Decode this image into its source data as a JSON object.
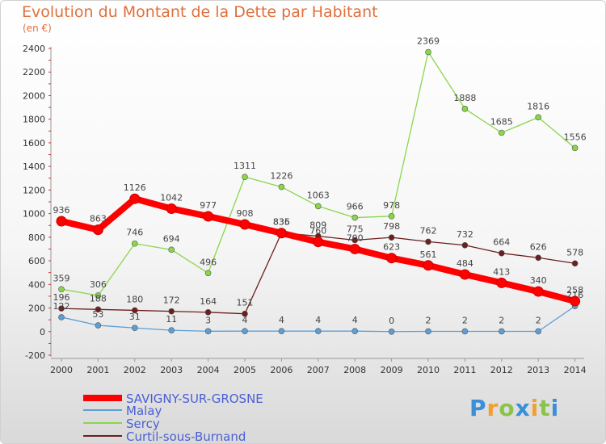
{
  "chart_data": {
    "type": "line",
    "title": "Evolution du Montant de la Dette par Habitant",
    "subtitle": "(en €)",
    "x": [
      "2000",
      "2001",
      "2002",
      "2003",
      "2004",
      "2005",
      "2006",
      "2007",
      "2008",
      "2009",
      "2010",
      "2011",
      "2012",
      "2013",
      "2014"
    ],
    "ylim": [
      -200,
      2400
    ],
    "yticks": [
      -200,
      0,
      200,
      400,
      600,
      800,
      1000,
      1200,
      1400,
      1600,
      1800,
      2000,
      2200,
      2400
    ],
    "grid": false,
    "legend_position": "bottom-left",
    "series": [
      {
        "name": "SAVIGNY-SUR-GROSNE",
        "color": "#ff0000",
        "values": [
          936,
          863,
          1126,
          1042,
          977,
          908,
          835,
          760,
          700,
          623,
          561,
          484,
          413,
          340,
          258
        ]
      },
      {
        "name": "Malay",
        "color": "#5d9ed6",
        "values": [
          122,
          53,
          31,
          11,
          3,
          4,
          4,
          4,
          4,
          0,
          2,
          2,
          2,
          2,
          216
        ]
      },
      {
        "name": "Sercy",
        "color": "#8ad64a",
        "values": [
          359,
          306,
          746,
          694,
          496,
          1311,
          1226,
          1063,
          966,
          978,
          2369,
          1888,
          1685,
          1816,
          1556
        ]
      },
      {
        "name": "Curtil-sous-Burnand",
        "color": "#6b1f1f",
        "values": [
          196,
          188,
          180,
          172,
          164,
          151,
          836,
          809,
          775,
          798,
          762,
          732,
          664,
          626,
          578
        ]
      }
    ]
  },
  "logo": {
    "letters": [
      "P",
      "r",
      "o",
      "x",
      "i",
      "t",
      "i"
    ],
    "colors": [
      "#3a8fd9",
      "#f0a030",
      "#8bc34a",
      "#3a8fd9",
      "#f0a030",
      "#8bc34a",
      "#3a8fd9"
    ]
  }
}
